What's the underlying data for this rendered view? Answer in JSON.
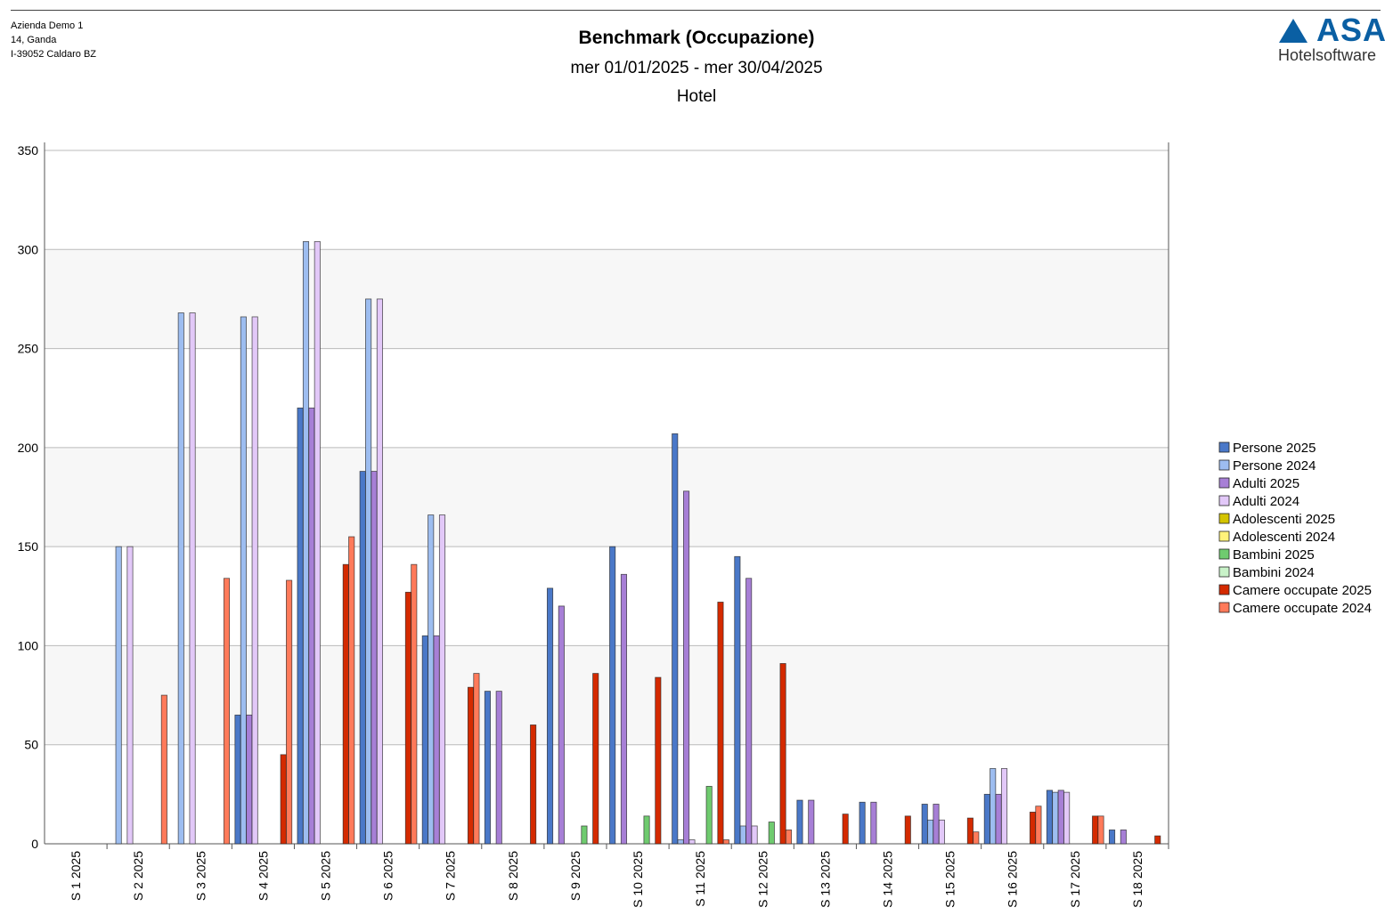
{
  "header": {
    "company": [
      "Azienda Demo 1",
      "14, Ganda",
      "I-39052 Caldaro BZ"
    ],
    "title": "Benchmark (Occupazione)",
    "period": "mer 01/01/2025 - mer 30/04/2025",
    "subtitle": "Hotel",
    "logo_text": "ASA",
    "logo_sub": "Hotelsoftware"
  },
  "chart_data": {
    "type": "bar",
    "title": "Benchmark (Occupazione)",
    "xlabel": "",
    "ylabel": "",
    "ylim": [
      0,
      350
    ],
    "yticks": [
      0,
      50,
      100,
      150,
      200,
      250,
      300,
      350
    ],
    "grid": true,
    "legend_position": "right",
    "categories": [
      "S 1 2025",
      "S 2 2025",
      "S 3 2025",
      "S 4 2025",
      "S 5 2025",
      "S 6 2025",
      "S 7 2025",
      "S 8 2025",
      "S 9 2025",
      "S 10 2025",
      "S 11 2025",
      "S 12 2025",
      "S 13 2025",
      "S 14 2025",
      "S 15 2025",
      "S 16 2025",
      "S 17 2025",
      "S 18 2025"
    ],
    "series": [
      {
        "name": "Persone 2025",
        "color": "#4a78c8",
        "values": [
          0,
          0,
          0,
          65,
          220,
          188,
          105,
          77,
          129,
          150,
          207,
          145,
          22,
          21,
          20,
          25,
          27,
          7
        ]
      },
      {
        "name": "Persone 2024",
        "color": "#9dbdf0",
        "values": [
          0,
          150,
          268,
          266,
          304,
          275,
          166,
          0,
          0,
          0,
          2,
          9,
          0,
          0,
          12,
          38,
          26,
          0
        ]
      },
      {
        "name": "Adulti 2025",
        "color": "#a77fd6",
        "values": [
          0,
          0,
          0,
          65,
          220,
          188,
          105,
          77,
          120,
          136,
          178,
          134,
          22,
          21,
          20,
          25,
          27,
          7
        ]
      },
      {
        "name": "Adulti 2024",
        "color": "#e2c8f8",
        "values": [
          0,
          150,
          268,
          266,
          304,
          275,
          166,
          0,
          0,
          0,
          2,
          9,
          0,
          0,
          12,
          38,
          26,
          0
        ]
      },
      {
        "name": "Adolescenti 2025",
        "color": "#d4c400",
        "values": [
          0,
          0,
          0,
          0,
          0,
          0,
          0,
          0,
          0,
          0,
          0,
          0,
          0,
          0,
          0,
          0,
          0,
          0
        ]
      },
      {
        "name": "Adolescenti 2024",
        "color": "#fff27a",
        "values": [
          0,
          0,
          0,
          0,
          0,
          0,
          0,
          0,
          0,
          0,
          0,
          0,
          0,
          0,
          0,
          0,
          0,
          0
        ]
      },
      {
        "name": "Bambini 2025",
        "color": "#6fcb6f",
        "values": [
          0,
          0,
          0,
          0,
          0,
          0,
          0,
          0,
          9,
          14,
          29,
          11,
          0,
          0,
          0,
          0,
          0,
          0
        ]
      },
      {
        "name": "Bambini 2024",
        "color": "#c8f2c8",
        "values": [
          0,
          0,
          0,
          0,
          0,
          0,
          0,
          0,
          0,
          0,
          0,
          0,
          0,
          0,
          0,
          0,
          0,
          0
        ]
      },
      {
        "name": "Camere occupate 2025",
        "color": "#d42a00",
        "values": [
          0,
          0,
          0,
          45,
          141,
          127,
          79,
          60,
          86,
          84,
          122,
          91,
          15,
          14,
          13,
          16,
          14,
          4
        ]
      },
      {
        "name": "Camere occupate 2024",
        "color": "#ff7a5a",
        "values": [
          0,
          75,
          134,
          133,
          155,
          141,
          86,
          0,
          0,
          0,
          2,
          7,
          0,
          0,
          6,
          19,
          14,
          0
        ]
      }
    ]
  }
}
